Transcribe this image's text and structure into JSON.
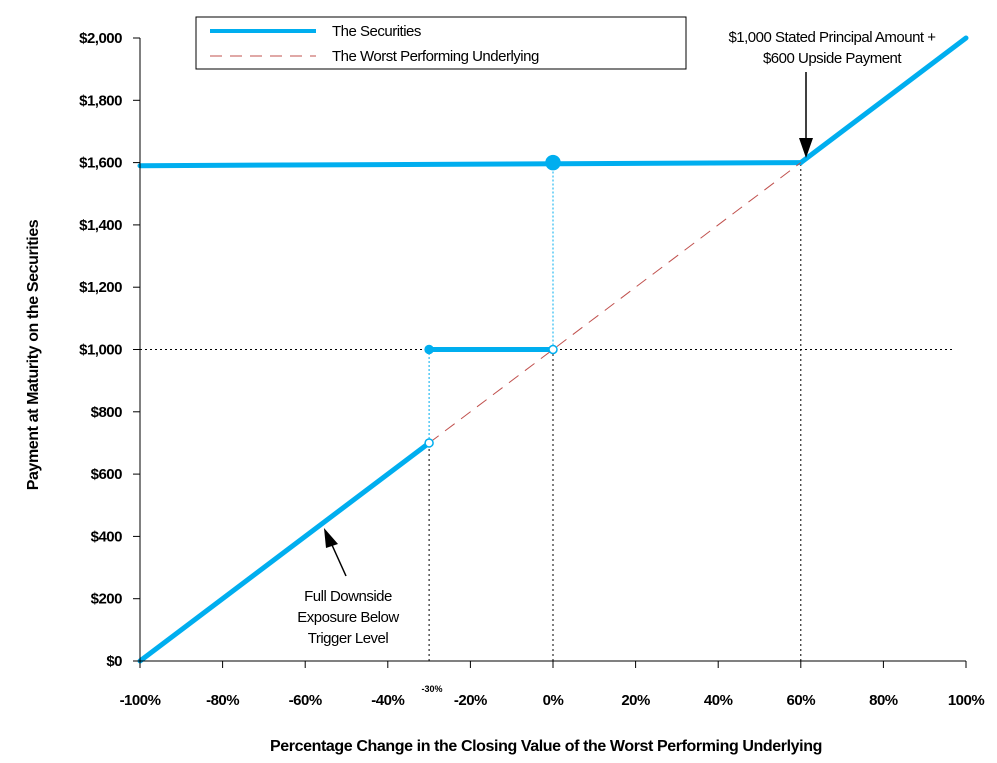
{
  "chart_data": {
    "type": "line",
    "xlabel": "Percentage Change in the Closing Value of the Worst Performing Underlying",
    "ylabel": "Payment at Maturity on the Securities",
    "xlim": [
      -100,
      100
    ],
    "ylim": [
      0,
      2000
    ],
    "x_ticks": [
      -100,
      -80,
      -60,
      -40,
      -20,
      0,
      20,
      40,
      60,
      80,
      100
    ],
    "x_tick_labels": [
      "-100%",
      "-80%",
      "-60%",
      "-40%",
      "-20%",
      "0%",
      "20%",
      "40%",
      "60%",
      "80%",
      "100%"
    ],
    "y_ticks": [
      0,
      200,
      400,
      600,
      800,
      1000,
      1200,
      1400,
      1600,
      1800,
      2000
    ],
    "y_tick_labels": [
      "$0",
      "$200",
      "$400",
      "$600",
      "$800",
      "$1,000",
      "$1,200",
      "$1,400",
      "$1,600",
      "$1,800",
      "$2,000"
    ],
    "grid": false,
    "legend_position": "top",
    "colors": {
      "securities": "#00aeef",
      "underlying": "#c0504d",
      "guide": "#000000"
    },
    "series": [
      {
        "name": "The Securities",
        "style": "solid",
        "segments": [
          [
            [
              -100,
              0
            ],
            [
              -30,
              700
            ]
          ],
          [
            [
              -30,
              1000
            ],
            [
              0,
              1000
            ]
          ],
          [
            [
              -100,
              1590
            ],
            [
              60,
              1600
            ]
          ],
          [
            [
              60,
              1600
            ],
            [
              100,
              2000
            ]
          ]
        ]
      },
      {
        "name": "The Worst Performing Underlying",
        "style": "dashed",
        "segments": [
          [
            [
              -30,
              700
            ],
            [
              60,
              1600
            ]
          ]
        ]
      }
    ],
    "markers": [
      {
        "x": -30,
        "y": 1000,
        "fill": "solid",
        "size": "small"
      },
      {
        "x": -30,
        "y": 700,
        "fill": "open",
        "size": "small"
      },
      {
        "x": 0,
        "y": 1000,
        "fill": "open",
        "size": "small"
      },
      {
        "x": 0,
        "y": 1600,
        "fill": "solid",
        "size": "large"
      }
    ],
    "reference_lines": [
      {
        "type": "horizontal",
        "y": 1000,
        "from_x": -100,
        "to_x": 100,
        "color": "black"
      },
      {
        "type": "vertical",
        "x": -30,
        "from_y": 0,
        "to_y": 700,
        "color": "black"
      },
      {
        "type": "vertical",
        "x": -30,
        "from_y": 700,
        "to_y": 1000,
        "color": "blue"
      },
      {
        "type": "vertical",
        "x": 0,
        "from_y": 0,
        "to_y": 1000,
        "color": "black"
      },
      {
        "type": "vertical",
        "x": 0,
        "from_y": 1000,
        "to_y": 1600,
        "color": "blue"
      },
      {
        "type": "vertical",
        "x": 60,
        "from_y": 0,
        "to_y": 1600,
        "color": "black"
      }
    ],
    "annotations": [
      {
        "text_lines": [
          "$1,000 Stated Principal Amount +",
          "$600 Upside Payment"
        ],
        "arrow_to": [
          60,
          1600
        ]
      },
      {
        "text_lines": [
          "Full Downside",
          "Exposure Below",
          "Trigger Level"
        ],
        "arrow_to": [
          -55,
          440
        ]
      },
      {
        "text_lines": [
          "-30%"
        ],
        "at_x": -30
      }
    ]
  }
}
